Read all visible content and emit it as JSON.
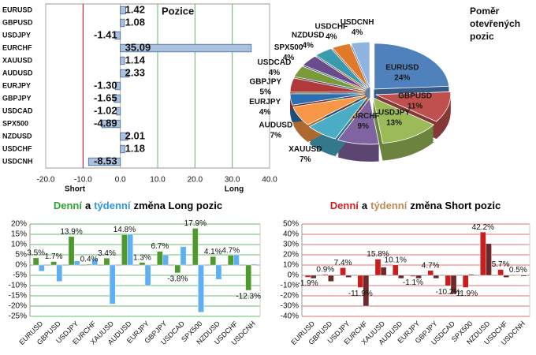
{
  "chart_data": [
    {
      "type": "hbar",
      "title": "Pozice",
      "categories": [
        "EURUSD",
        "GBPUSD",
        "USDJPY",
        "EURCHF",
        "XAUUSD",
        "AUDUSD",
        "EURJPY",
        "GBPJPY",
        "USDCAD",
        "SPX500",
        "NZDUSD",
        "USDCHF",
        "USDCNH"
      ],
      "values": [
        1.42,
        1.08,
        -1.41,
        35.09,
        1.14,
        2.33,
        -1.3,
        -1.65,
        -1.02,
        -4.89,
        2.01,
        1.18,
        -8.53
      ],
      "value_labels": [
        "1.42",
        "1.08",
        "-1.41",
        "35.09",
        "1.14",
        "2.33",
        "-1.30",
        "-1.65",
        "-1.02",
        "-4.89",
        "2.01",
        "1.18",
        "-8.53"
      ],
      "color": "#a9c1dc",
      "xlim": [
        -20,
        40
      ],
      "xticks": [
        {
          "value": -20,
          "label": "-20.0"
        },
        {
          "value": -10,
          "label": "-10.0"
        },
        {
          "value": 0,
          "label": "0.0"
        },
        {
          "value": 10,
          "label": "10.0"
        },
        {
          "value": 20,
          "label": "20.0"
        },
        {
          "value": 30,
          "label": "30.0"
        },
        {
          "value": 40,
          "label": "40.0"
        }
      ],
      "grid_colors": [
        "#aaaaaa",
        "#c00000",
        "#aaaaaa",
        "#5fb85f",
        "#5fb85f",
        "#5fb85f",
        "#aaaaaa"
      ],
      "annotations": [
        "Short",
        "Long"
      ]
    },
    {
      "type": "pie",
      "title": [
        "Poměr",
        "otevřených",
        "pozic"
      ],
      "categories": [
        "EURUSD",
        "GBPUSD",
        "USDJPY",
        "EURCHF",
        "XAUUSD",
        "AUDUSD",
        "EURJPY",
        "GBPJPY",
        "USDCAD",
        "SPX500",
        "NZDUSD",
        "USDCHF",
        "USDCNH"
      ],
      "values": [
        24,
        11,
        13,
        9,
        7,
        7,
        4,
        5,
        4,
        4,
        4,
        4,
        4
      ],
      "value_labels": [
        "24%",
        "11%",
        "13%",
        "9%",
        "7%",
        "7%",
        "4%",
        "5%",
        "4%",
        "4%",
        "4%",
        "4%",
        "4%"
      ],
      "colors": [
        "#4f81bd",
        "#c0504d",
        "#9bbb59",
        "#8064a2",
        "#4bacc6",
        "#f79646",
        "#2c6fb0",
        "#b03a3a",
        "#7a9a3a",
        "#6a4c8c",
        "#3a9ab0",
        "#e07a2a",
        "#8fb4e0"
      ]
    },
    {
      "type": "bar",
      "title": [
        "Denní",
        "a",
        "týdenní",
        "změna Long pozic"
      ],
      "title_colors": [
        "#2ea52e",
        "#000000",
        "#2f95e0",
        "#000000"
      ],
      "categories": [
        "EURUSD",
        "GBPUSD",
        "USDJPY",
        "EURCHF",
        "XAUUSD",
        "AUDUSD",
        "EURJPY",
        "GBPJPY",
        "USDCAD",
        "SPX500",
        "NZDUSD",
        "USDCHF",
        "USDCNH"
      ],
      "series": [
        {
          "color": "#4e9a2e",
          "values": [
            3.5,
            1.7,
            13.9,
            0.4,
            3.4,
            14.8,
            1.3,
            6.7,
            -3.8,
            17.9,
            4.1,
            4.7,
            -12.3
          ],
          "value_labels": [
            "3.5%",
            "1.7%",
            "13.9%",
            "0.4%",
            "3.4%",
            "14.8%",
            "1.3%",
            "6.7%",
            "-3.8%",
            "17.9%",
            "4.1%",
            "4.7%",
            "-12.3%"
          ]
        },
        {
          "color": "#5fb0f0",
          "values": [
            -3,
            -8,
            2,
            3,
            -19,
            15,
            -10,
            5,
            9,
            -23,
            -7,
            5,
            0.5
          ]
        }
      ],
      "ylim": [
        -25,
        20
      ],
      "yticks": [
        {
          "value": -25,
          "label": "-25%"
        },
        {
          "value": -20,
          "label": "-20%"
        },
        {
          "value": -15,
          "label": "-15%"
        },
        {
          "value": -10,
          "label": "-10%"
        },
        {
          "value": -5,
          "label": "-5%"
        },
        {
          "value": 0,
          "label": "0%"
        },
        {
          "value": 5,
          "label": "5%"
        },
        {
          "value": 10,
          "label": "10%"
        },
        {
          "value": 15,
          "label": "15%"
        },
        {
          "value": 20,
          "label": "20%"
        }
      ],
      "grid_color": "#6abf6a"
    },
    {
      "type": "bar",
      "title": [
        "Denní",
        "a",
        "týdenní",
        "změna Short pozic"
      ],
      "title_colors": [
        "#d42020",
        "#000000",
        "#c08a50",
        "#000000"
      ],
      "categories": [
        "EURUSD",
        "GBPUSD",
        "USDJPY",
        "EURCHF",
        "XAUUSD",
        "AUDUSD",
        "EURJPY",
        "GBPJPY",
        "USDCAD",
        "SPX500",
        "NZDUSD",
        "USDCHF",
        "USDCNH"
      ],
      "series": [
        {
          "color": "#c81e1e",
          "values": [
            -1.9,
            0.9,
            7.4,
            -11.9,
            15.8,
            10.1,
            -1.1,
            4.7,
            -10.2,
            -11.9,
            42.2,
            5.7,
            0.5
          ],
          "value_labels": [
            "-1.9%",
            "0.9%",
            "7.4%",
            "-11.9%",
            "15.8%",
            "10.1%",
            "-1.1%",
            "4.7%",
            "-10.2%",
            "-11.9%",
            "42.2%",
            "5.7%",
            "0.5%"
          ]
        },
        {
          "color": "#6e2a2a",
          "values": [
            -3,
            -6,
            -2,
            -30,
            8,
            -3,
            -3,
            -3,
            -18,
            1,
            31,
            -2,
            -1
          ]
        }
      ],
      "ylim": [
        -40,
        50
      ],
      "yticks": [
        {
          "value": -40,
          "label": "-40%"
        },
        {
          "value": -30,
          "label": "-30%"
        },
        {
          "value": -20,
          "label": "-20%"
        },
        {
          "value": -10,
          "label": "-10%"
        },
        {
          "value": 0,
          "label": "0%"
        },
        {
          "value": 10,
          "label": "10%"
        },
        {
          "value": 20,
          "label": "20%"
        },
        {
          "value": 30,
          "label": "30%"
        },
        {
          "value": 40,
          "label": "40%"
        },
        {
          "value": 50,
          "label": "50%"
        }
      ],
      "grid_color": "#e07070"
    }
  ]
}
